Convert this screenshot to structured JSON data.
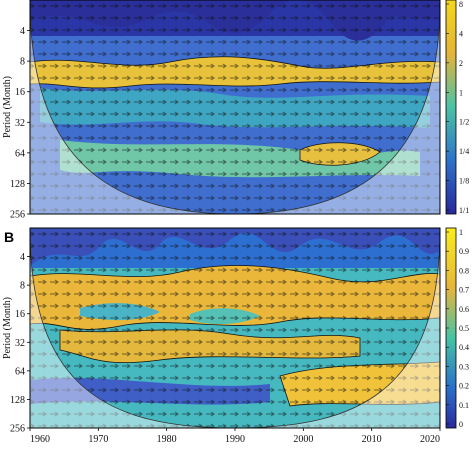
{
  "chart_data": [
    {
      "type": "heatmap",
      "panel_label": "",
      "ylabel": "Period (Month)",
      "yticks": [
        4,
        8,
        16,
        32,
        64,
        128,
        256
      ],
      "xlim": [
        1960,
        2020
      ],
      "ylim": [
        2,
        256
      ],
      "y_scale": "log2",
      "colorbar": {
        "tick_labels": [
          "8",
          "4",
          "2",
          "1",
          "1/2",
          "1/4",
          "1/8",
          "1/1"
        ],
        "colors": [
          "#e8d21c",
          "#3fc6b2",
          "#2a3fa8"
        ]
      },
      "bands": [
        {
          "period": 10,
          "value": "high"
        },
        {
          "period": 48,
          "value": "moderate"
        }
      ]
    },
    {
      "type": "heatmap",
      "panel_label": "B",
      "ylabel": "Period (Month)",
      "yticks": [
        4,
        8,
        16,
        32,
        64,
        128,
        256
      ],
      "xticks": [
        1960,
        1970,
        1980,
        1990,
        2000,
        2010,
        2020
      ],
      "xlim": [
        1960,
        2020
      ],
      "ylim": [
        2,
        256
      ],
      "y_scale": "log2",
      "colorbar": {
        "tick_labels": [
          "1",
          "0.9",
          "0.8",
          "0.7",
          "0.6",
          "0.5",
          "0.4",
          "0.3",
          "0.2",
          "0.1",
          "0"
        ],
        "range": [
          0,
          1
        ],
        "colors": [
          "#f8ee1c",
          "#e6b53c",
          "#46c3a4",
          "#2c6fc9",
          "#2a2a9c"
        ]
      },
      "bands": [
        {
          "period": 12,
          "value": 0.85
        },
        {
          "period": 40,
          "value": 0.8
        },
        {
          "period": 100,
          "value": 0.8,
          "x_range": [
            1990,
            2020
          ]
        }
      ]
    }
  ]
}
